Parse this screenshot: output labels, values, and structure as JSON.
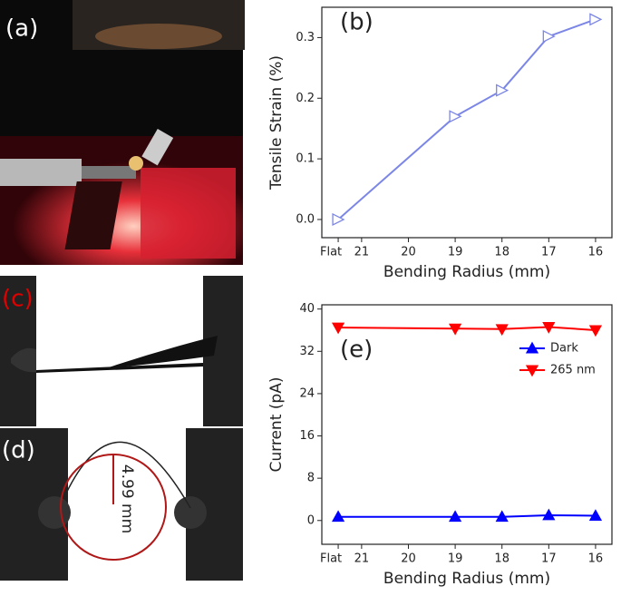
{
  "photos": {
    "a": "(a)",
    "c": "(c)",
    "d": "(d)",
    "scale": "4.99 mm"
  },
  "chart_data": [
    {
      "type": "line",
      "annotation": "(b)",
      "xlabel": "Bending Radius (mm)",
      "ylabel": "Tensile Strain (%)",
      "xlim": [
        21.85,
        15.65
      ],
      "xticks": [
        {
          "value": 21.5,
          "label": "Flat"
        },
        21,
        20,
        19,
        18,
        17,
        16
      ],
      "ylim": [
        -0.03,
        0.35
      ],
      "yticks": [
        {
          "value": 0,
          "label": "0.0"
        },
        0.1,
        0.2,
        0.3
      ],
      "x": [
        21.5,
        19,
        18,
        17,
        16
      ],
      "series": [
        {
          "color": "#7b86e6",
          "marker": "triangle-right-open",
          "values": [
            0,
            0.17,
            0.213,
            0.302,
            0.33
          ]
        }
      ]
    },
    {
      "type": "line",
      "annotation": "(e)",
      "xlabel": "Bending Radius (mm)",
      "ylabel": "Current (pA)",
      "xlim": [
        21.85,
        15.65
      ],
      "xticks": [
        {
          "value": 21.5,
          "label": "Flat"
        },
        21,
        20,
        19,
        18,
        17,
        16
      ],
      "ylim": [
        -4.5,
        40.8
      ],
      "yticks": [
        0,
        8,
        16,
        24,
        32,
        40
      ],
      "legend": "upper right",
      "x": [
        21.5,
        19,
        18,
        17,
        16
      ],
      "series": [
        {
          "name": "Dark",
          "color": "#0000ff",
          "marker": "triangle-up",
          "values": [
            0.7,
            0.7,
            0.7,
            1.0,
            0.9
          ]
        },
        {
          "name": "265 nm",
          "color": "#ff0000",
          "marker": "triangle-down",
          "values": [
            36.5,
            36.3,
            36.2,
            36.6,
            36.0
          ]
        }
      ]
    }
  ]
}
